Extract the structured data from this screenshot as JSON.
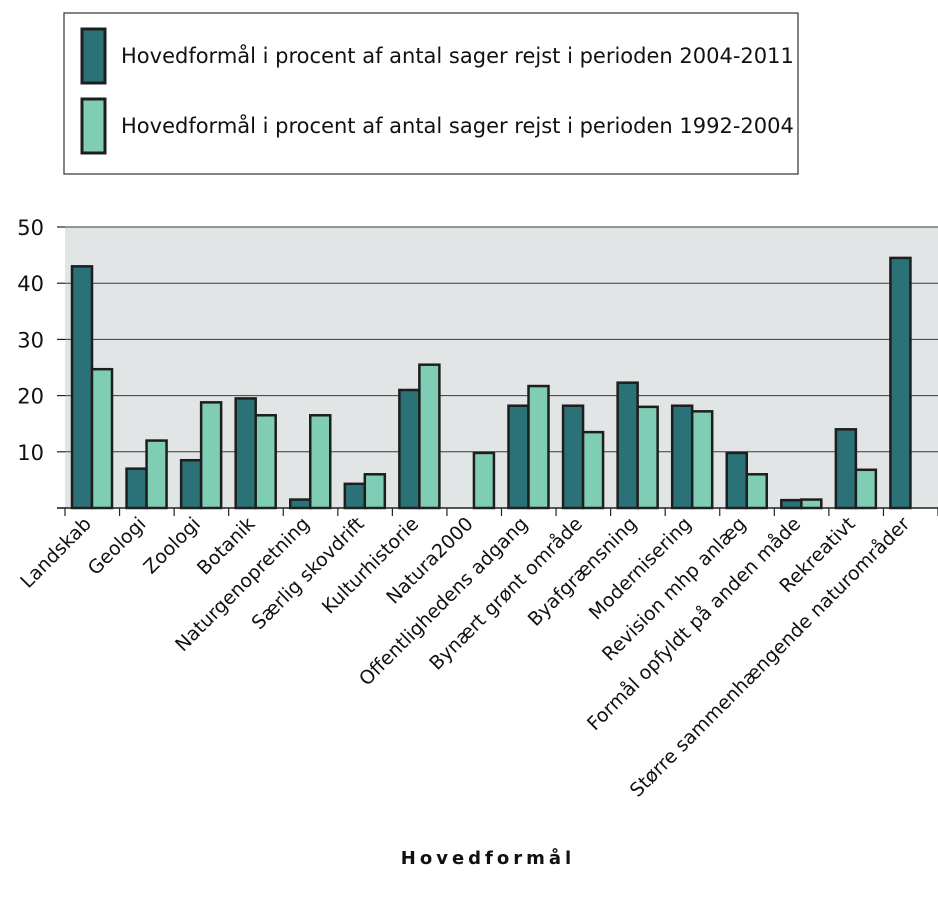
{
  "chart_data": {
    "type": "bar",
    "title": "",
    "xlabel": "Hovedformål",
    "ylabel": "",
    "ylim": [
      0,
      50
    ],
    "yticks": [
      10,
      20,
      30,
      40,
      50
    ],
    "grid": true,
    "legend_position": "top",
    "categories": [
      "Landskab",
      "Geologi",
      "Zoologi",
      "Botanik",
      "Naturgenopretning",
      "Særlig skovdrift",
      "Kulturhistorie",
      "Natura2000",
      "Offentlighedens adgang",
      "Bynært grønt område",
      "Byafgrænsning",
      "Modernisering",
      "Revision mhp anlæg",
      "Formål opfyldt på anden måde",
      "Rekreativt",
      "Større sammenhængende naturområder"
    ],
    "series": [
      {
        "name": "Hovedformål i procent af antal sager rejst i perioden 2004-2011",
        "color": "#2b7178",
        "values": [
          43,
          7,
          8.5,
          19.5,
          1.5,
          4.3,
          21,
          0,
          18.2,
          18.2,
          22.3,
          18.2,
          9.8,
          1.4,
          14,
          44.5
        ]
      },
      {
        "name": "Hovedformål i procent af antal sager rejst i perioden 1992-2004",
        "color": "#7ecdb4",
        "values": [
          24.7,
          12,
          18.8,
          16.5,
          16.5,
          6,
          25.5,
          9.8,
          21.7,
          13.5,
          18,
          17.2,
          6,
          1.5,
          6.8,
          null
        ]
      }
    ],
    "colors": {
      "plot_background": "#e1e5e6",
      "gridline": "#3a3a3a",
      "bar_outline": "#1e1e1e"
    }
  }
}
